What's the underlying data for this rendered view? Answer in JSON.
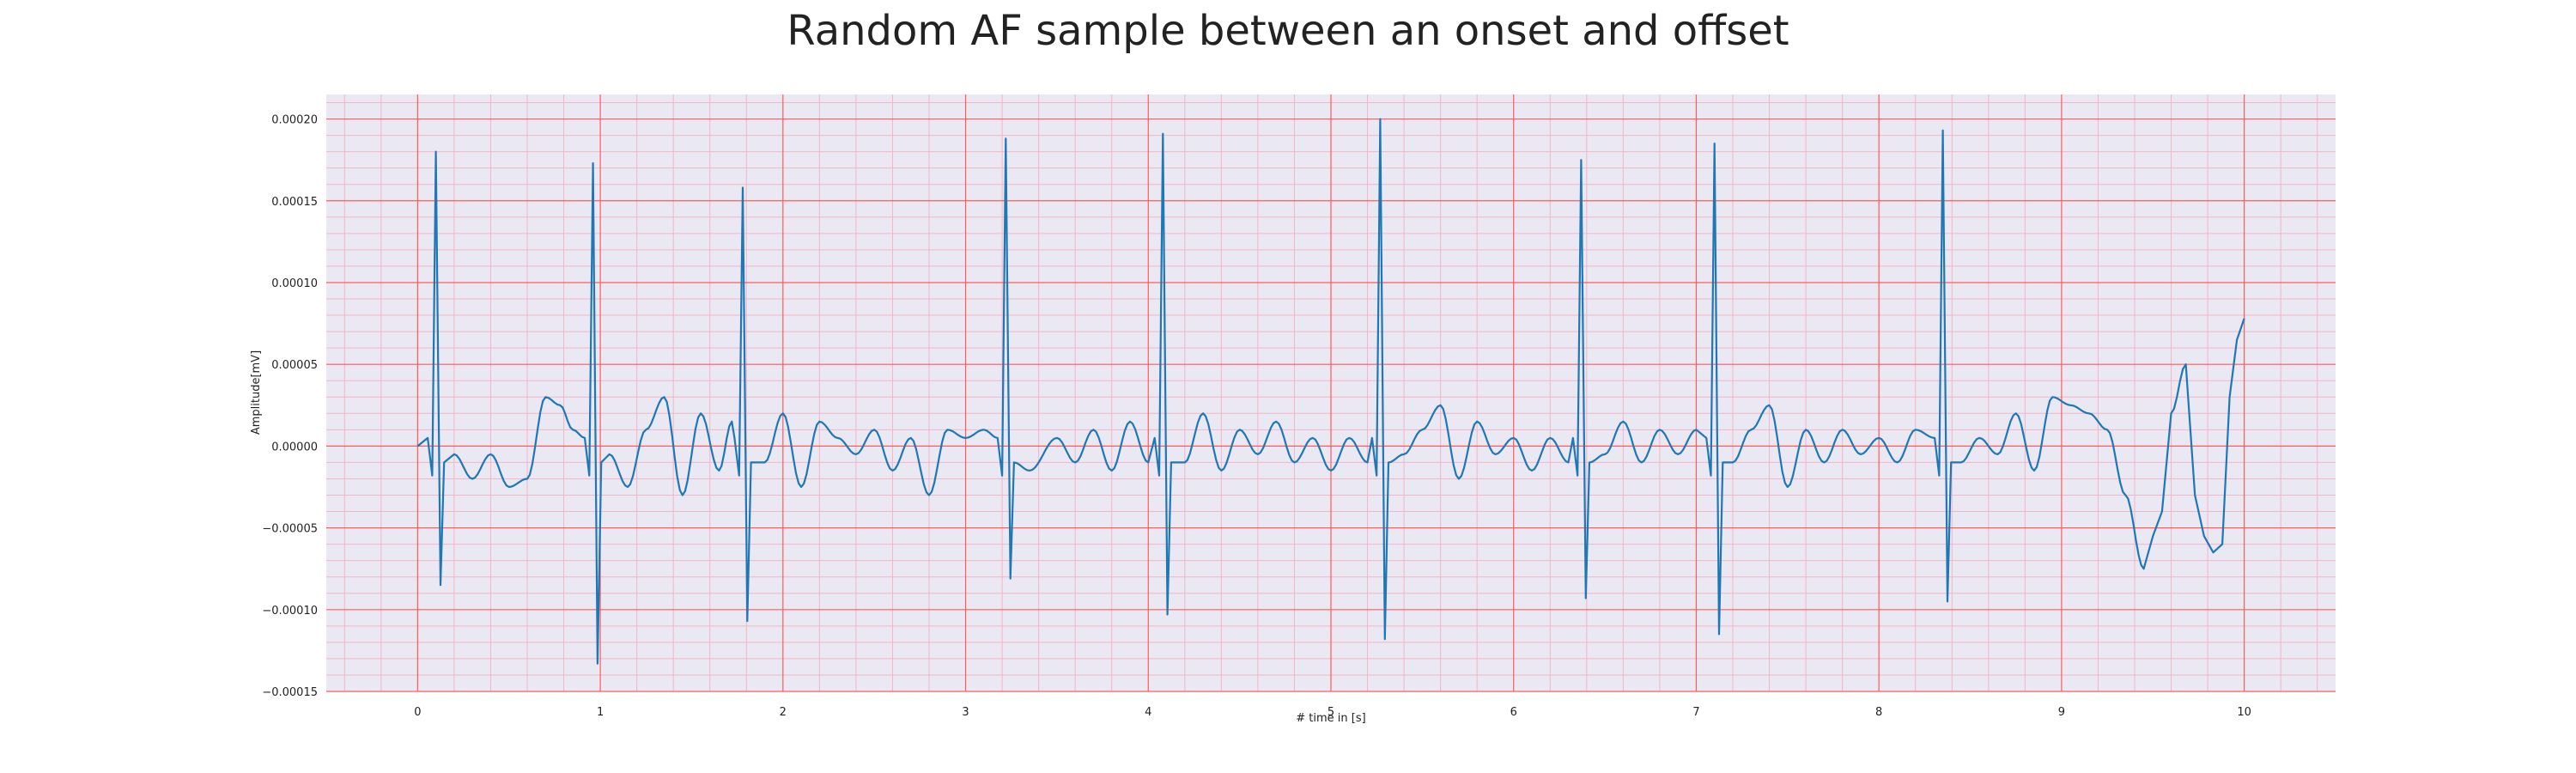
{
  "chart_data": {
    "type": "line",
    "title": "Random AF sample between an onset and offset",
    "xlabel": "# time in [s]",
    "ylabel": "Amplitude[mV]",
    "xlim": [
      -0.5,
      10.5
    ],
    "ylim": [
      -0.00015,
      0.000215
    ],
    "xticks": [
      0,
      1,
      2,
      3,
      4,
      5,
      6,
      7,
      8,
      9,
      10
    ],
    "xtick_labels": [
      "0",
      "1",
      "2",
      "3",
      "4",
      "5",
      "6",
      "7",
      "8",
      "9",
      "10"
    ],
    "yticks": [
      -0.00015,
      -0.0001,
      -5e-05,
      0.0,
      5e-05,
      0.0001,
      0.00015,
      0.0002
    ],
    "ytick_labels": [
      "−0.00015",
      "−0.00010",
      "−0.00005",
      "0.00000",
      "0.00005",
      "0.00010",
      "0.00015",
      "0.00020"
    ],
    "grid": true,
    "grid_style": "ECG paper: major red lines at ticks, minor pink lines",
    "colors": {
      "line": "#1f77b4",
      "background": "#eae8f2",
      "major_grid": "#ff5b5b",
      "minor_grid": "#f2b6c6"
    },
    "beats": [
      {
        "t": 0.1,
        "r": 0.00018,
        "s": -8.5e-05
      },
      {
        "t": 0.96,
        "r": 0.000173,
        "s": -0.000133
      },
      {
        "t": 1.78,
        "r": 0.000158,
        "s": -0.000107
      },
      {
        "t": 3.22,
        "r": 0.000188,
        "s": -8.1e-05
      },
      {
        "t": 4.08,
        "r": 0.000191,
        "s": -0.000103
      },
      {
        "t": 5.27,
        "r": 0.0002,
        "s": -0.000118
      },
      {
        "t": 6.37,
        "r": 0.000175,
        "s": -9.3e-05
      },
      {
        "t": 7.1,
        "r": 0.000185,
        "s": -0.000115
      },
      {
        "t": 8.35,
        "r": 0.000193,
        "s": -9.5e-05
      }
    ],
    "baseline_points": [
      [
        0.0,
        0.0
      ],
      [
        0.05,
        5e-06
      ],
      [
        0.2,
        -5e-06
      ],
      [
        0.3,
        -2e-05
      ],
      [
        0.4,
        -5e-06
      ],
      [
        0.5,
        -2.5e-05
      ],
      [
        0.6,
        -2e-05
      ],
      [
        0.7,
        3e-05
      ],
      [
        0.78,
        2.5e-05
      ],
      [
        0.85,
        1e-05
      ],
      [
        1.05,
        -5e-06
      ],
      [
        1.15,
        -2.5e-05
      ],
      [
        1.25,
        1e-05
      ],
      [
        1.35,
        3e-05
      ],
      [
        1.45,
        -3e-05
      ],
      [
        1.55,
        2e-05
      ],
      [
        1.65,
        -1.5e-05
      ],
      [
        1.72,
        1.5e-05
      ],
      [
        1.9,
        -1e-05
      ],
      [
        2.0,
        2e-05
      ],
      [
        2.1,
        -2.5e-05
      ],
      [
        2.2,
        1.5e-05
      ],
      [
        2.3,
        5e-06
      ],
      [
        2.4,
        -5e-06
      ],
      [
        2.5,
        1e-05
      ],
      [
        2.6,
        -1.5e-05
      ],
      [
        2.7,
        5e-06
      ],
      [
        2.8,
        -3e-05
      ],
      [
        2.9,
        1e-05
      ],
      [
        3.0,
        5e-06
      ],
      [
        3.1,
        1e-05
      ],
      [
        3.35,
        -1.5e-05
      ],
      [
        3.5,
        5e-06
      ],
      [
        3.6,
        -1e-05
      ],
      [
        3.7,
        1e-05
      ],
      [
        3.8,
        -1.5e-05
      ],
      [
        3.9,
        1.5e-05
      ],
      [
        4.0,
        -1e-05
      ],
      [
        4.2,
        -1e-05
      ],
      [
        4.3,
        2e-05
      ],
      [
        4.4,
        -1.5e-05
      ],
      [
        4.5,
        1e-05
      ],
      [
        4.6,
        -5e-06
      ],
      [
        4.7,
        1.5e-05
      ],
      [
        4.8,
        -1e-05
      ],
      [
        4.9,
        5e-06
      ],
      [
        5.0,
        -1.5e-05
      ],
      [
        5.1,
        5e-06
      ],
      [
        5.2,
        -1e-05
      ],
      [
        5.4,
        -5e-06
      ],
      [
        5.5,
        1e-05
      ],
      [
        5.6,
        2.5e-05
      ],
      [
        5.7,
        -2e-05
      ],
      [
        5.8,
        1.5e-05
      ],
      [
        5.9,
        -5e-06
      ],
      [
        6.0,
        5e-06
      ],
      [
        6.1,
        -1.5e-05
      ],
      [
        6.2,
        5e-06
      ],
      [
        6.3,
        -1e-05
      ],
      [
        6.5,
        -5e-06
      ],
      [
        6.6,
        1.5e-05
      ],
      [
        6.7,
        -1e-05
      ],
      [
        6.8,
        1e-05
      ],
      [
        6.9,
        -5e-06
      ],
      [
        7.0,
        1e-05
      ],
      [
        7.2,
        -1e-05
      ],
      [
        7.3,
        1e-05
      ],
      [
        7.4,
        2.5e-05
      ],
      [
        7.5,
        -2.5e-05
      ],
      [
        7.6,
        1e-05
      ],
      [
        7.7,
        -1e-05
      ],
      [
        7.8,
        1e-05
      ],
      [
        7.9,
        -5e-06
      ],
      [
        8.0,
        5e-06
      ],
      [
        8.1,
        -1e-05
      ],
      [
        8.2,
        1e-05
      ],
      [
        8.3,
        5e-06
      ],
      [
        8.45,
        -1e-05
      ],
      [
        8.55,
        5e-06
      ],
      [
        8.65,
        -5e-06
      ],
      [
        8.75,
        2e-05
      ],
      [
        8.85,
        -1.5e-05
      ],
      [
        8.95,
        3e-05
      ],
      [
        9.05,
        2.5e-05
      ],
      [
        9.15,
        2e-05
      ],
      [
        9.25,
        1e-05
      ],
      [
        9.35,
        -3e-05
      ],
      [
        9.45,
        -7.5e-05
      ],
      [
        9.5,
        -5.5e-05
      ],
      [
        9.55,
        -4e-05
      ],
      [
        9.6,
        2e-05
      ],
      [
        9.68,
        5e-05
      ],
      [
        9.73,
        -3e-05
      ],
      [
        9.78,
        -5.5e-05
      ],
      [
        9.83,
        -6.5e-05
      ],
      [
        9.88,
        -6e-05
      ],
      [
        9.92,
        3e-05
      ],
      [
        9.96,
        6.5e-05
      ],
      [
        10.0,
        7.8e-05
      ]
    ]
  }
}
